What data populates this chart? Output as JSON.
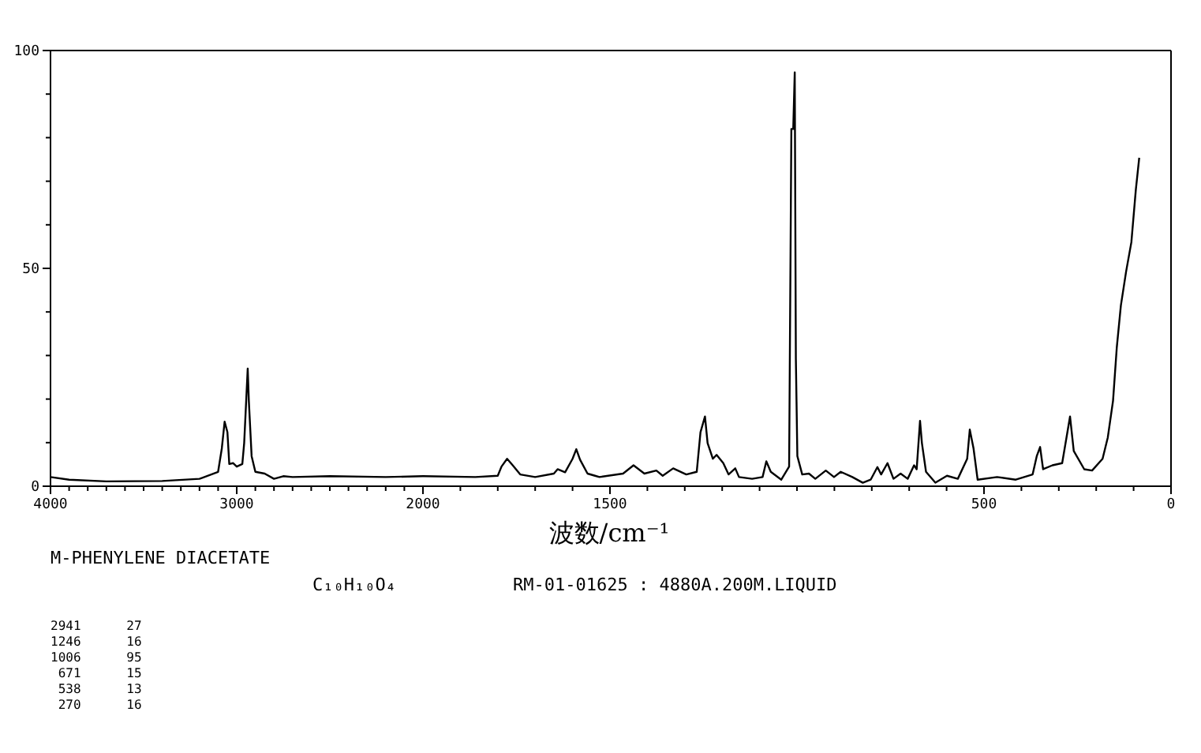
{
  "chart_data": [
    {
      "type": "line",
      "xlim": [
        4000,
        2000
      ],
      "ylim": [
        0,
        100
      ],
      "xticks": [
        4000,
        {
          "value": 3900,
          "label": null
        },
        {
          "value": 3800,
          "label": null
        },
        {
          "value": 3700,
          "label": null
        },
        {
          "value": 3600,
          "label": null
        },
        {
          "value": 3500,
          "label": null
        },
        {
          "value": 3400,
          "label": null
        },
        {
          "value": 3300,
          "label": null
        },
        {
          "value": 3200,
          "label": null
        },
        {
          "value": 3100,
          "label": null
        },
        3000,
        {
          "value": 2900,
          "label": null
        },
        {
          "value": 2800,
          "label": null
        },
        {
          "value": 2700,
          "label": null
        },
        {
          "value": 2600,
          "label": null
        },
        {
          "value": 2500,
          "label": null
        },
        {
          "value": 2400,
          "label": null
        },
        {
          "value": 2300,
          "label": null
        },
        {
          "value": 2200,
          "label": null
        },
        {
          "value": 2100,
          "label": null
        },
        2000
      ],
      "yticks": [
        0,
        {
          "value": 10,
          "label": null
        },
        {
          "value": 20,
          "label": null
        },
        {
          "value": 30,
          "label": null
        },
        {
          "value": 40,
          "label": null
        },
        50,
        {
          "value": 60,
          "label": null
        },
        {
          "value": 70,
          "label": null
        },
        {
          "value": 80,
          "label": null
        },
        {
          "value": 90,
          "label": null
        },
        100
      ],
      "series": [
        {
          "color": "#000000",
          "x": [
            4000,
            3900,
            3700,
            3400,
            3200,
            3100,
            3080,
            3065,
            3050,
            3040,
            3020,
            3000,
            2970,
            2960,
            2941,
            2935,
            2920,
            2900,
            2850,
            2800,
            2750,
            2700,
            2500,
            2200,
            2000
          ],
          "values": [
            2.1,
            1.5,
            1.1,
            1.2,
            1.7,
            3.3,
            8.7,
            14.8,
            12.4,
            5.1,
            5.3,
            4.5,
            5.1,
            9.9,
            27,
            19.6,
            6.9,
            3.3,
            2.9,
            1.7,
            2.3,
            2.1,
            2.3,
            2.1,
            2.3
          ]
        }
      ],
      "annotations": [
        "M-PHENYLENE DIACETATE",
        "C₁₀H₁₀O₄",
        "RM-01-01625 : 4880A.200M.LIQUID",
        "2941      27",
        "1246      16",
        "1006      95",
        " 671      15",
        " 538      13",
        " 270      16"
      ]
    },
    {
      "type": "line",
      "xlim": [
        2000,
        0
      ],
      "ylim": [
        0,
        100
      ],
      "tick_labels": "x",
      "xlabel": "波数/cm⁻¹",
      "xticks": [
        {
          "value": 1900,
          "label": null
        },
        {
          "value": 1800,
          "label": null
        },
        {
          "value": 1700,
          "label": null
        },
        {
          "value": 1600,
          "label": null
        },
        1500,
        {
          "value": 1400,
          "label": null
        },
        {
          "value": 1300,
          "label": null
        },
        {
          "value": 1200,
          "label": null
        },
        {
          "value": 1100,
          "label": null
        },
        {
          "value": 1000,
          "label": null
        },
        {
          "value": 900,
          "label": null
        },
        {
          "value": 800,
          "label": null
        },
        {
          "value": 700,
          "label": null
        },
        {
          "value": 600,
          "label": null
        },
        500,
        {
          "value": 400,
          "label": null
        },
        {
          "value": 300,
          "label": null
        },
        {
          "value": 200,
          "label": null
        },
        {
          "value": 100,
          "label": null
        },
        0
      ],
      "series": [
        {
          "color": "#000000",
          "x": [
            2000,
            1860,
            1800,
            1790,
            1775,
            1760,
            1740,
            1700,
            1650,
            1640,
            1620,
            1600,
            1590,
            1580,
            1560,
            1540,
            1528,
            1465,
            1437,
            1408,
            1376,
            1359,
            1331,
            1296,
            1268,
            1258,
            1246,
            1239,
            1225,
            1215,
            1197,
            1183,
            1165,
            1155,
            1120,
            1092,
            1082,
            1070,
            1042,
            1021,
            1015,
            1010,
            1006,
            1003,
            999,
            986,
            968,
            951,
            923,
            901,
            883,
            852,
            824,
            803,
            785,
            775,
            758,
            742,
            723,
            704,
            687,
            680,
            671,
            666,
            655,
            630,
            599,
            570,
            545,
            538,
            528,
            517,
            465,
            415,
            370,
            359,
            350,
            342,
            317,
            291,
            277,
            270,
            260,
            232,
            211,
            183,
            169,
            155,
            145,
            134,
            120,
            106,
            94,
            85
          ],
          "values": [
            2.3,
            2.1,
            2.4,
            4.5,
            6.3,
            4.8,
            2.7,
            2.1,
            2.9,
            3.9,
            3.2,
            6.3,
            8.5,
            6.1,
            2.9,
            2.4,
            2.1,
            2.9,
            4.8,
            2.9,
            3.6,
            2.4,
            4.1,
            2.7,
            3.3,
            12.4,
            16,
            9.9,
            6.3,
            7.2,
            5.3,
            2.7,
            4.1,
            2.1,
            1.7,
            2.1,
            5.7,
            3.3,
            1.5,
            4.5,
            82,
            82,
            95,
            29.3,
            6.9,
            2.7,
            2.9,
            1.7,
            3.6,
            2.1,
            3.3,
            2.1,
            0.8,
            1.5,
            4.4,
            2.7,
            5.3,
            1.7,
            2.9,
            1.7,
            4.8,
            3.9,
            15,
            9.9,
            3.3,
            0.8,
            2.4,
            1.7,
            6.3,
            13,
            8.7,
            1.5,
            2.1,
            1.5,
            2.7,
            6.9,
            9,
            3.9,
            4.8,
            5.3,
            12.4,
            16,
            8.1,
            3.9,
            3.6,
            6.3,
            11.2,
            19.6,
            31.8,
            41.5,
            49.3,
            56,
            68.1,
            75.4
          ]
        }
      ]
    }
  ]
}
